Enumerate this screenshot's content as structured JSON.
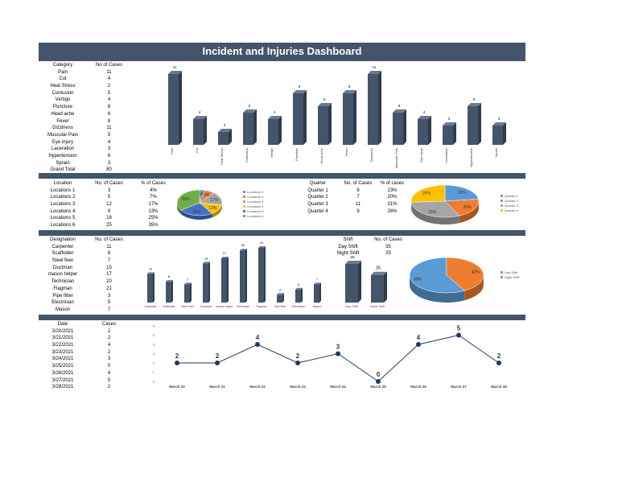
{
  "title": "Incident and Injuries Dashboard",
  "colors": {
    "header": "#44546a",
    "bar": "#44546a",
    "line": "#1f3864"
  },
  "category": {
    "headers": [
      "Category",
      "No of Cases"
    ],
    "rows": [
      [
        "Pain",
        "11"
      ],
      [
        "Cut",
        "4"
      ],
      [
        "Heat Stress",
        "2"
      ],
      [
        "Contusion",
        "5"
      ],
      [
        "Vertigo",
        "4"
      ],
      [
        "Puncture",
        "8"
      ],
      [
        "Head ache",
        "6"
      ],
      [
        "Fever",
        "8"
      ],
      [
        "Dizziness",
        "11"
      ],
      [
        "Muscular Pain",
        "5"
      ],
      [
        "Eye injury",
        "4"
      ],
      [
        "Laceration",
        "3"
      ],
      [
        "Hypertension",
        "6"
      ],
      [
        "Sprain",
        "3"
      ]
    ],
    "total": [
      "Grand Total",
      "80"
    ]
  },
  "location": {
    "headers": [
      "Location",
      "No. of Cases",
      "% of Cases"
    ],
    "rows": [
      [
        "Locations 1",
        "3",
        "4%"
      ],
      [
        "Locations 2",
        "5",
        "7%"
      ],
      [
        "Locations 3",
        "12",
        "17%"
      ],
      [
        "Locations 4",
        "9",
        "13%"
      ],
      [
        "Locations 5",
        "18",
        "25%"
      ],
      [
        "Locations 6",
        "25",
        "35%"
      ]
    ]
  },
  "quarter": {
    "headers": [
      "Quarter",
      "No. of Cases",
      "% of cases"
    ],
    "rows": [
      [
        "Quarter 1",
        "8",
        "23%"
      ],
      [
        "Quarter 2",
        "7",
        "20%"
      ],
      [
        "Quarter 3",
        "11",
        "31%"
      ],
      [
        "Quarter 4",
        "9",
        "26%"
      ]
    ]
  },
  "designation": {
    "headers": [
      "Designation",
      "No. of Cases"
    ],
    "rows": [
      [
        "Carpenter",
        "11"
      ],
      [
        "Scaffolder",
        "8"
      ],
      [
        "Steel fixer",
        "7"
      ],
      [
        "Ductman",
        "15"
      ],
      [
        "mason helper",
        "17"
      ],
      [
        "Technician",
        "20"
      ],
      [
        "Flagman",
        "21"
      ],
      [
        "Pipe fitter",
        "3"
      ],
      [
        "Electrician",
        "5"
      ],
      [
        "Mason",
        "7"
      ]
    ]
  },
  "shift": {
    "headers": [
      "Shift",
      "No. of Cases"
    ],
    "rows": [
      [
        "Day Shift",
        "35"
      ],
      [
        "Night Shift",
        "25"
      ]
    ]
  },
  "dates": {
    "headers": [
      "Date",
      "Cases"
    ],
    "rows": [
      [
        "3/20/2021",
        "2"
      ],
      [
        "3/21/2021",
        "2"
      ],
      [
        "3/22/2021",
        "4"
      ],
      [
        "3/23/2021",
        "2"
      ],
      [
        "3/24/2021",
        "3"
      ],
      [
        "3/25/2021",
        "0"
      ],
      [
        "3/26/2021",
        "4"
      ],
      [
        "3/27/2021",
        "5"
      ],
      [
        "3/28/2021",
        "2"
      ]
    ]
  },
  "chart_data": [
    {
      "type": "bar",
      "id": "category",
      "categories": [
        "Pain",
        "Cut",
        "Heat Stress",
        "Contusion",
        "Vertigo",
        "Puncture",
        "Head ache",
        "Fever",
        "Dizziness",
        "Muscular Pain",
        "Eye injury",
        "Laceration",
        "Hypertension",
        "Sprain"
      ],
      "values": [
        11,
        4,
        2,
        5,
        4,
        8,
        6,
        8,
        11,
        5,
        4,
        3,
        6,
        3
      ]
    },
    {
      "type": "pie",
      "id": "location",
      "labels": [
        "Locations 1",
        "Locations 2",
        "Locations 3",
        "Locations 4",
        "Locations 5",
        "Locations 6"
      ],
      "values": [
        4,
        7,
        17,
        13,
        25,
        35
      ],
      "data_labels": [
        "4%",
        "7%",
        "17%",
        "13%",
        "25%",
        "35%"
      ],
      "colors": [
        "#5b9bd5",
        "#ed7d31",
        "#a5a5a5",
        "#ffc000",
        "#4472c4",
        "#70ad47"
      ],
      "legend": "right"
    },
    {
      "type": "pie",
      "id": "quarter",
      "labels": [
        "Quarter 1",
        "Quarter 2",
        "Quarter 3",
        "Quarter 4"
      ],
      "values": [
        23,
        20,
        31,
        26
      ],
      "data_labels": [
        "23%",
        "20%",
        "31%",
        "26%"
      ],
      "colors": [
        "#5b9bd5",
        "#ed7d31",
        "#a5a5a5",
        "#ffc000"
      ],
      "legend": "right"
    },
    {
      "type": "bar",
      "id": "designation",
      "categories": [
        "Carpenter",
        "Scaffolder",
        "Steel fixer",
        "Ductman",
        "mason helper",
        "Technician",
        "Flagman",
        "Pipe fitter",
        "Electrician",
        "Mason"
      ],
      "tick_labels": [
        "Carpenter",
        "Scaffolder",
        "Steel fixer",
        "Ductman",
        "mason helper",
        "Technician",
        "Flagman",
        "Pipe fitter",
        "Electrician",
        "Mason"
      ],
      "values": [
        11,
        8,
        7,
        15,
        17,
        20,
        21,
        3,
        5,
        7
      ]
    },
    {
      "type": "bar",
      "id": "shift",
      "categories": [
        "Day Shift",
        "Night Shift"
      ],
      "values": [
        35,
        25
      ]
    },
    {
      "type": "pie",
      "id": "shift-pie",
      "labels": [
        "Day Shift",
        "Night Shift"
      ],
      "values": [
        58,
        42
      ],
      "data_labels": [
        "58%",
        "42%"
      ],
      "colors": [
        "#5b9bd5",
        "#ed7d31"
      ],
      "legend": "right"
    },
    {
      "type": "line",
      "id": "daily",
      "categories": [
        "March 20",
        "March 21",
        "March 22",
        "March 23",
        "March 24",
        "March 25",
        "March 26",
        "March 27",
        "March 28"
      ],
      "values": [
        2,
        2,
        4,
        2,
        3,
        0,
        4,
        5,
        2
      ],
      "ylim": [
        0,
        6
      ],
      "yticks": [
        "0",
        "1",
        "2",
        "3",
        "4",
        "5",
        "6"
      ]
    }
  ]
}
